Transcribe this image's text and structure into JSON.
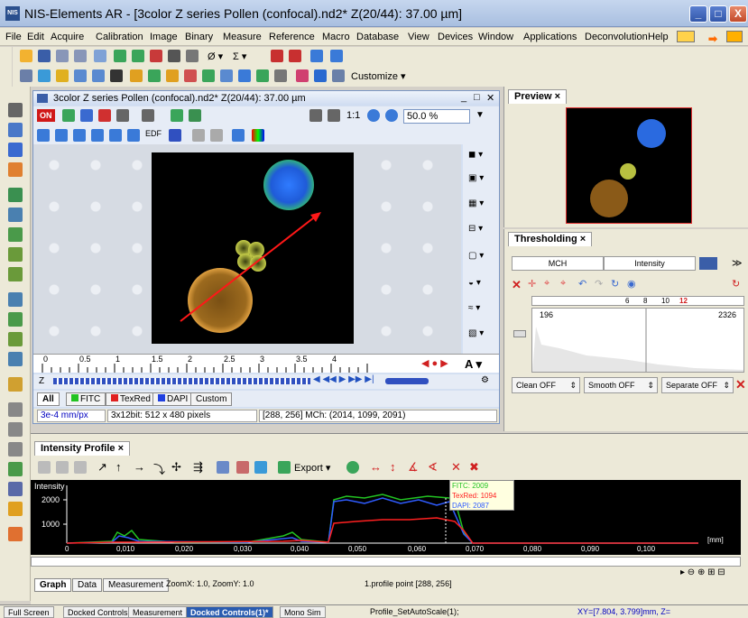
{
  "window": {
    "title": "NIS-Elements AR  - [3color Z series Pollen (confocal).nd2*  Z(20/44): 37.00 µm]",
    "app_icon": "NIS",
    "minimize": "_",
    "maximize": "□",
    "close": "X"
  },
  "menu": [
    "File",
    "Edit",
    "Acquire",
    "Calibration",
    "Image",
    "Binary",
    "Measure",
    "Reference",
    "Macro",
    "Database",
    "View",
    "Devices",
    "Window",
    "Applications",
    "Deconvolution",
    "Help"
  ],
  "toolbar": {
    "customize_label": "Customize ▾",
    "zoom_sigma": "Σ ▾",
    "empty_set": "Ø ▾"
  },
  "document": {
    "title": "3color Z series Pollen (confocal).nd2*   Z(20/44): 37.00 µm",
    "on_label": "ON",
    "edf_label": "EDF",
    "one_to_one": "1:1",
    "zoom_value": "50.0 %",
    "ruler_ticks": [
      "0",
      "0.5",
      "1",
      "1.5",
      "2",
      "2.5",
      "3",
      "3.5",
      "4"
    ],
    "z_label": "Z",
    "channel_tabs": [
      "All",
      "FITC",
      "TexRed",
      "DAPI",
      "Custom"
    ],
    "status": {
      "scale": "3e-4 mm/px",
      "format": "3x12bit: 512 x 480 pixels",
      "pixel_info": "[288, 256] MCh: (2014, 1099, 2091)"
    }
  },
  "preview": {
    "tab": "Preview"
  },
  "thresholding": {
    "tab": "Thresholding",
    "mch_label": "MCH",
    "intensity_label": "Intensity",
    "scale_ticks": [
      "6",
      "8",
      "10",
      "12"
    ],
    "low_value": "196",
    "high_value": "2326",
    "clean_label": "Clean OFF",
    "smooth_label": "Smooth OFF",
    "separate_label": "Separate OFF"
  },
  "profile": {
    "tab": "Intensity Profile",
    "export_label": "Export ▾",
    "y_label": "Intensity",
    "y_ticks": [
      "2000",
      "1000"
    ],
    "x_ticks": [
      "0",
      "0,010",
      "0,020",
      "0,030",
      "0,040",
      "0,050",
      "0,060",
      "0,070",
      "0,080",
      "0,090",
      "0,100"
    ],
    "x_unit": "[mm]",
    "tooltip": {
      "fitc": "FITC: 2009",
      "texred": "TexRed: 1094",
      "dapi": "DAPI: 2087"
    },
    "bottom_tabs": [
      "Graph",
      "Data",
      "Measurement"
    ],
    "zoom_info": "ZoomX: 1.0, ZoomY: 1.0",
    "point_info": "1.profile point [288, 256]"
  },
  "taskbar": {
    "items": [
      "Full Screen",
      "Docked Controls",
      "Measurement",
      "Docked Controls(1)*",
      "Mono Sim"
    ],
    "macro": "Profile_SetAutoScale(1);",
    "coords": "XY=[7.804, 3.799]mm, Z="
  },
  "colors": {
    "fitc": "#22c322",
    "texred": "#ff2020",
    "dapi": "#2f5cff",
    "arrow": "#ff1818",
    "tooltip_bg": "#ffffe0"
  }
}
